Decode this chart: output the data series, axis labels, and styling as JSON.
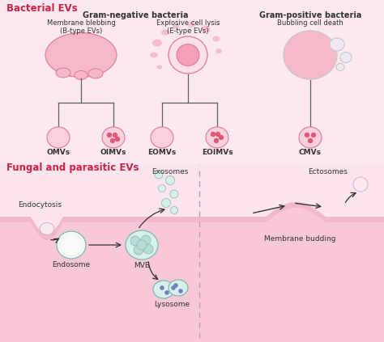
{
  "title_bacterial": "Bacterial EVs",
  "title_fungal": "Fungal and parasitic EVs",
  "title_color": "#cc2244",
  "gram_neg_label": "Gram-negative bacteria",
  "gram_pos_label": "Gram-positive bacteria",
  "membrane_blebbing": "Membrane blebbing\n(B-type EVs)",
  "explosive_cell": "Explosive cell lysis\n(E-type EVs)",
  "bubbling_cell": "Bubbling cell death",
  "omvs": "OMVs",
  "oimvs": "OIMVs",
  "eomvs": "EOMVs",
  "eoimvs": "EOIMVs",
  "cmvs": "CMVs",
  "endocytosis": "Endocytosis",
  "endosome": "Endosome",
  "mvb": "MVB",
  "lysosome": "Lysosome",
  "exosomes": "Exosomes",
  "ectosomes": "Ectosomes",
  "membrane_budding": "Membrane budding",
  "bg_top": "#fce8f0",
  "bg_bot": "#f8c8d8",
  "membrane_color": "#f4b8cc",
  "membrane_inner": "#f8d8e4",
  "pink_blob": "#f4b8c8",
  "pink_blob_edge": "#e07898",
  "pink_med": "#f4a0b8",
  "pink_dark": "#e07898",
  "pink_vesicle": "#f9d0dc",
  "pink_vesicle_edge": "#e07898",
  "pink_dot": "#e05878",
  "pink_cell_fill": "#fce0ec",
  "gray_bubble": "#c8c8c8",
  "gray_bubble_fill": "#f0e8f0",
  "teal_fill": "#d8f0ec",
  "teal_edge": "#80b8b0",
  "teal_inner": "#b8ddd8",
  "white_cell": "#f8f8f8",
  "line_color": "#606060",
  "text_color": "#333333",
  "arrow_color": "#333333",
  "blue_dot": "#7080b8",
  "separator_color": "#c0a0b0"
}
